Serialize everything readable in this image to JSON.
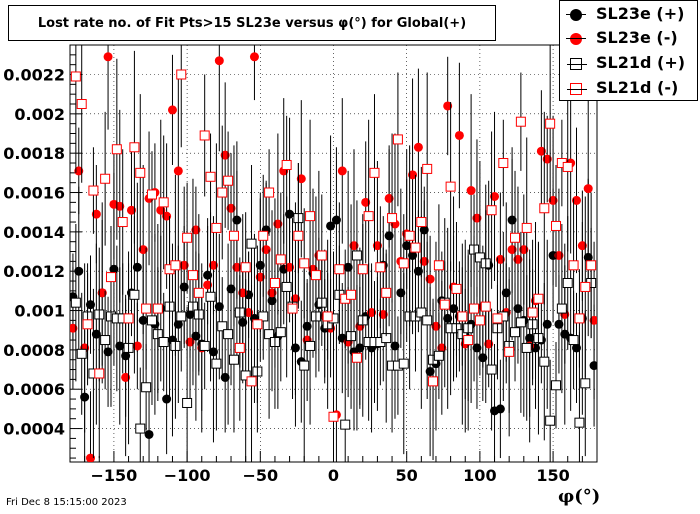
{
  "title": "Lost rate no. of Fit Pts>15 SL23e versus φ(°) for Global(+)",
  "footer": "Fri Dec  8 15:15:00 2023",
  "legend": [
    {
      "label": "SL23e (+)",
      "marker": "filled-circle",
      "color": "#000000"
    },
    {
      "label": "SL23e (-)",
      "marker": "filled-circle",
      "color": "#ff0000"
    },
    {
      "label": "SL21d (+)",
      "marker": "open-square",
      "color": "#000000"
    },
    {
      "label": "SL21d (-)",
      "marker": "open-square",
      "color": "#ff0000"
    }
  ],
  "chart_data": {
    "type": "scatter",
    "title": "Lost rate no. of Fit Pts>15 SL23e versus φ(°) for Global(+)",
    "xlabel": "φ(°)",
    "ylabel": "",
    "xlim": [
      -180,
      180
    ],
    "ylim": [
      0.00023,
      0.00235
    ],
    "x_ticks": [
      -150,
      -100,
      -50,
      0,
      50,
      100,
      150
    ],
    "x_tick_labels": [
      "−150",
      "−100",
      "−50",
      "0",
      "50",
      "100",
      "150"
    ],
    "y_ticks": [
      0.0004,
      0.0006,
      0.0008,
      0.001,
      0.0012,
      0.0014,
      0.0016,
      0.0018,
      0.002,
      0.0022
    ],
    "y_tick_labels": [
      "0.0004",
      "0.0006",
      "0.0008",
      "0.001",
      "0.0012",
      "0.0014",
      "0.0016",
      "0.0018",
      "0.002",
      "0.0022"
    ],
    "grid": true,
    "legend_position": "top-right",
    "error_bars": "vertical, approx. ±0.0002 to ±0.0005 per point",
    "series": [
      {
        "name": "SL23e (+)",
        "color": "#000000",
        "marker": "filled-circle",
        "x": [
          -178,
          -174,
          -170,
          -166,
          -162,
          -158,
          -154,
          -150,
          -146,
          -142,
          -138,
          -134,
          -130,
          -126,
          -122,
          -118,
          -114,
          -110,
          -106,
          -102,
          -98,
          -94,
          -90,
          -86,
          -82,
          -78,
          -74,
          -70,
          -66,
          -62,
          -58,
          -54,
          -50,
          -46,
          -42,
          -38,
          -34,
          -30,
          -26,
          -22,
          -18,
          -14,
          -10,
          -6,
          -2,
          2,
          6,
          10,
          14,
          18,
          22,
          26,
          30,
          34,
          38,
          42,
          46,
          50,
          54,
          58,
          62,
          66,
          70,
          74,
          78,
          82,
          86,
          90,
          94,
          98,
          102,
          106,
          110,
          114,
          118,
          122,
          126,
          130,
          134,
          138,
          142,
          146,
          150,
          154,
          158,
          162,
          166,
          170,
          174,
          178
        ],
        "y": [
          0.00107,
          0.0012,
          0.00056,
          0.00103,
          0.00088,
          0.00109,
          0.00079,
          0.00121,
          0.00082,
          0.00077,
          0.00109,
          0.00122,
          0.00095,
          0.00037,
          0.00093,
          0.00101,
          0.00055,
          0.00085,
          0.00093,
          0.00112,
          0.00098,
          0.00087,
          0.00083,
          0.00118,
          0.00079,
          0.00102,
          0.00066,
          0.00111,
          0.00146,
          0.00094,
          0.00108,
          0.00096,
          0.00123,
          0.00141,
          0.00105,
          0.00087,
          0.00121,
          0.00149,
          0.00081,
          0.00074,
          0.00092,
          0.00119,
          0.00103,
          0.00091,
          0.00143,
          0.00146,
          0.00086,
          0.00122,
          0.00079,
          0.00081,
          0.00097,
          0.00081,
          0.00083,
          0.00123,
          0.00138,
          0.00082,
          0.00109,
          0.00133,
          0.00128,
          0.0012,
          0.00141,
          0.00069,
          0.00073,
          0.00105,
          0.00096,
          0.00101,
          0.00097,
          0.00087,
          0.00093,
          0.00081,
          0.00076,
          0.00123,
          0.00049,
          0.0005,
          0.00109,
          0.00146,
          0.00101,
          0.00095,
          0.00086,
          0.00081,
          0.00085,
          0.00093,
          0.00128,
          0.00093,
          0.00088,
          0.00086,
          0.00081,
          0.00096,
          0.00127,
          0.00072
        ]
      },
      {
        "name": "SL23e (-)",
        "color": "#ff0000",
        "marker": "filled-circle",
        "x": [
          -178,
          -174,
          -170,
          -166,
          -162,
          -158,
          -154,
          -150,
          -146,
          -142,
          -138,
          -134,
          -130,
          -126,
          -122,
          -118,
          -114,
          -110,
          -106,
          -102,
          -98,
          -94,
          -90,
          -86,
          -82,
          -78,
          -74,
          -70,
          -66,
          -62,
          -58,
          -54,
          -50,
          -46,
          -42,
          -38,
          -34,
          -30,
          -26,
          -22,
          -18,
          -14,
          -10,
          -6,
          -2,
          2,
          6,
          10,
          14,
          18,
          22,
          26,
          30,
          34,
          38,
          42,
          46,
          50,
          54,
          58,
          62,
          66,
          70,
          74,
          78,
          82,
          86,
          90,
          94,
          98,
          102,
          106,
          110,
          114,
          118,
          122,
          126,
          130,
          134,
          138,
          142,
          146,
          150,
          154,
          158,
          162,
          166,
          170,
          174,
          178
        ],
        "y": [
          0.00091,
          0.00171,
          0.00081,
          0.00025,
          0.00149,
          0.00109,
          0.00229,
          0.00154,
          0.00153,
          0.00066,
          0.00151,
          0.00082,
          0.00131,
          0.00157,
          0.0016,
          0.00151,
          0.00148,
          0.00202,
          0.00171,
          0.00123,
          0.00084,
          0.00141,
          0.00081,
          0.00113,
          0.00123,
          0.00227,
          0.00179,
          0.00152,
          0.00122,
          0.00109,
          0.00099,
          0.00229,
          0.00117,
          0.00131,
          0.00109,
          0.00144,
          0.00171,
          0.00122,
          0.00106,
          0.00167,
          0.00085,
          0.00121,
          0.00128,
          0.00097,
          0.00091,
          0.00047,
          0.00171,
          0.00084,
          0.00133,
          0.00092,
          0.00155,
          0.00099,
          0.00133,
          0.00098,
          0.00157,
          0.00144,
          0.00125,
          0.00139,
          0.00169,
          0.00183,
          0.00125,
          0.00116,
          0.00092,
          0.00081,
          0.00204,
          0.00112,
          0.00189,
          0.00083,
          0.00161,
          0.00147,
          0.00102,
          0.00083,
          0.00158,
          0.00126,
          0.00099,
          0.00131,
          0.00126,
          0.00131,
          0.00082,
          0.00105,
          0.00181,
          0.00177,
          0.00156,
          0.00128,
          0.00098,
          0.00175,
          0.00156,
          0.00133,
          0.00162,
          0.00095
        ]
      },
      {
        "name": "SL21d (+)",
        "color": "#000000",
        "marker": "open-square",
        "x": [
          -176,
          -172,
          -168,
          -164,
          -160,
          -156,
          -152,
          -148,
          -144,
          -140,
          -136,
          -132,
          -128,
          -124,
          -120,
          -116,
          -112,
          -108,
          -104,
          -100,
          -96,
          -92,
          -88,
          -84,
          -80,
          -76,
          -72,
          -68,
          -64,
          -60,
          -56,
          -52,
          -48,
          -44,
          -40,
          -36,
          -32,
          -28,
          -24,
          -20,
          -16,
          -12,
          -8,
          -4,
          0,
          4,
          8,
          12,
          16,
          20,
          24,
          28,
          32,
          36,
          40,
          44,
          48,
          52,
          56,
          60,
          64,
          68,
          72,
          76,
          80,
          84,
          88,
          92,
          96,
          100,
          104,
          108,
          112,
          116,
          120,
          124,
          128,
          132,
          136,
          140,
          144,
          148,
          152,
          156,
          160,
          164,
          168,
          172,
          176
        ],
        "y": [
          0.00104,
          0.00078,
          0.00097,
          0.00068,
          0.00098,
          0.00085,
          0.00097,
          0.00096,
          0.00096,
          0.00081,
          0.00108,
          0.0004,
          0.00061,
          0.00095,
          0.00088,
          0.00084,
          0.00102,
          0.00082,
          0.00097,
          0.00053,
          0.00102,
          0.00098,
          0.00082,
          0.00107,
          0.00073,
          0.00092,
          0.00088,
          0.00075,
          0.00099,
          0.00067,
          0.00134,
          0.00069,
          0.00097,
          0.00088,
          0.00084,
          0.00089,
          0.00112,
          0.00102,
          0.00147,
          0.00072,
          0.00082,
          0.00097,
          0.00104,
          0.00093,
          0.00096,
          0.00108,
          0.00042,
          0.00087,
          0.00128,
          0.00095,
          0.00084,
          0.00084,
          0.00084,
          0.00086,
          0.00072,
          0.00072,
          0.00073,
          0.00097,
          0.00097,
          0.00099,
          0.00095,
          0.00075,
          0.00077,
          0.00104,
          0.00091,
          0.00091,
          0.00088,
          0.00091,
          0.00131,
          0.00127,
          0.00124,
          0.0007,
          0.00091,
          0.00097,
          0.00082,
          0.00089,
          0.00094,
          0.00081,
          0.00093,
          0.00086,
          0.00074,
          0.00044,
          0.00062,
          0.00101,
          0.00114,
          0.00085,
          0.00043,
          0.00063,
          0.00114
        ]
      },
      {
        "name": "SL21d (-)",
        "color": "#ff0000",
        "marker": "open-square",
        "x": [
          -176,
          -172,
          -168,
          -164,
          -160,
          -156,
          -152,
          -148,
          -144,
          -140,
          -136,
          -132,
          -128,
          -124,
          -120,
          -116,
          -112,
          -108,
          -104,
          -100,
          -96,
          -92,
          -88,
          -84,
          -80,
          -76,
          -72,
          -68,
          -64,
          -60,
          -56,
          -52,
          -48,
          -44,
          -40,
          -36,
          -32,
          -28,
          -24,
          -20,
          -16,
          -12,
          -8,
          -4,
          0,
          4,
          8,
          12,
          16,
          20,
          24,
          28,
          32,
          36,
          40,
          44,
          48,
          52,
          56,
          60,
          64,
          68,
          72,
          76,
          80,
          84,
          88,
          92,
          96,
          100,
          104,
          108,
          112,
          116,
          120,
          124,
          128,
          132,
          136,
          140,
          144,
          148,
          152,
          156,
          160,
          164,
          168,
          172,
          176
        ],
        "y": [
          0.00219,
          0.00205,
          0.00093,
          0.00161,
          0.00068,
          0.00167,
          0.00117,
          0.00182,
          0.00145,
          0.00096,
          0.00183,
          0.0017,
          0.00101,
          0.00159,
          0.00101,
          0.00155,
          0.00121,
          0.00123,
          0.0022,
          0.00137,
          0.00118,
          0.00109,
          0.00189,
          0.00168,
          0.00142,
          0.0016,
          0.00166,
          0.00138,
          0.00081,
          0.00122,
          0.00064,
          0.00093,
          0.00138,
          0.0016,
          0.00114,
          0.00126,
          0.00174,
          0.00101,
          0.00138,
          0.00124,
          0.00148,
          0.00118,
          0.00128,
          0.00097,
          0.00046,
          0.00121,
          0.00106,
          0.00108,
          0.00076,
          0.00121,
          0.00148,
          0.0017,
          0.00122,
          0.00109,
          0.00147,
          0.00187,
          0.00124,
          0.00138,
          0.00132,
          0.00145,
          0.00172,
          0.00064,
          0.00123,
          0.00103,
          0.00163,
          0.00111,
          0.00097,
          0.00085,
          0.00101,
          0.00095,
          0.00102,
          0.00151,
          0.00096,
          0.00175,
          0.00079,
          0.00137,
          0.00196,
          0.00142,
          0.00099,
          0.00106,
          0.00152,
          0.00195,
          0.00143,
          0.00175,
          0.00173,
          0.00123,
          0.00096,
          0.00112,
          0.00123
        ]
      }
    ]
  }
}
